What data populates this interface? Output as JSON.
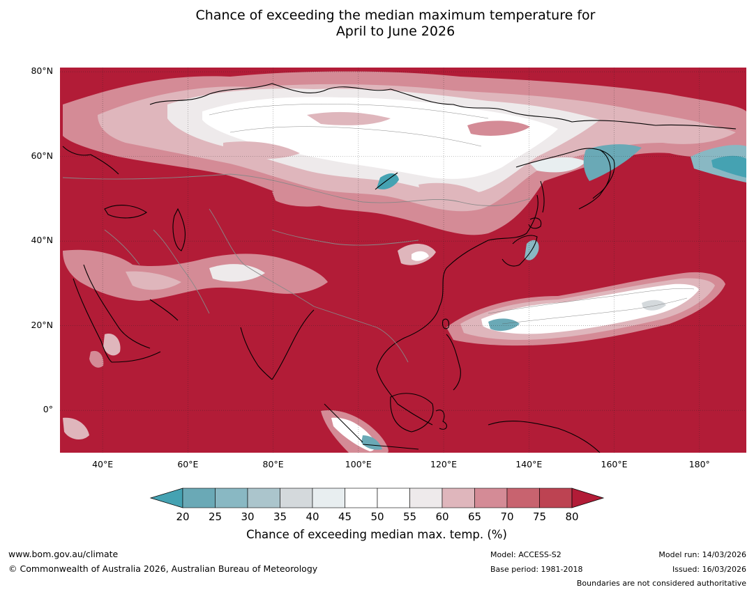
{
  "title_line1": "Chance of exceeding the median maximum temperature for",
  "title_line2": "April to June 2026",
  "lat_ticks": [
    {
      "label": "80°N",
      "value": 80
    },
    {
      "label": "60°N",
      "value": 60
    },
    {
      "label": "40°N",
      "value": 40
    },
    {
      "label": "20°N",
      "value": 20
    },
    {
      "label": "0°",
      "value": 0
    }
  ],
  "lon_ticks": [
    {
      "label": "40°E",
      "value": 40
    },
    {
      "label": "60°E",
      "value": 60
    },
    {
      "label": "80°E",
      "value": 80
    },
    {
      "label": "100°E",
      "value": 100
    },
    {
      "label": "120°E",
      "value": 120
    },
    {
      "label": "140°E",
      "value": 140
    },
    {
      "label": "160°E",
      "value": 160
    },
    {
      "label": "180°",
      "value": 180
    }
  ],
  "extent": {
    "lon_min": 30,
    "lon_max": 191,
    "lat_min": -10,
    "lat_max": 81
  },
  "colorbar": {
    "levels": [
      "20",
      "25",
      "30",
      "35",
      "40",
      "45",
      "50",
      "55",
      "60",
      "65",
      "70",
      "75",
      "80"
    ],
    "colors": [
      "#6aa9b6",
      "#89b8c3",
      "#abc5cc",
      "#d4d9dc",
      "#e8eef0",
      "#ffffff",
      "#ffffff",
      "#eeeaeb",
      "#dfb6bc",
      "#d48b96",
      "#c8636f",
      "#bd4352"
    ],
    "under_color": "#45a2b2",
    "over_color": "#b21c37",
    "title": "Chance of exceeding median max. temp. (%)"
  },
  "background_color": "#b21c37",
  "footer": {
    "website": "www.bom.gov.au/climate",
    "copyright": "© Commonwealth of Australia 2026, Australian Bureau of Meteorology",
    "model": "Model: ACCESS-S2",
    "base_period": "Base period: 1981-2018",
    "model_run": "Model run: 14/03/2026",
    "issued": "Issued: 16/03/2026",
    "boundaries": "Boundaries are not considered authoritative"
  }
}
